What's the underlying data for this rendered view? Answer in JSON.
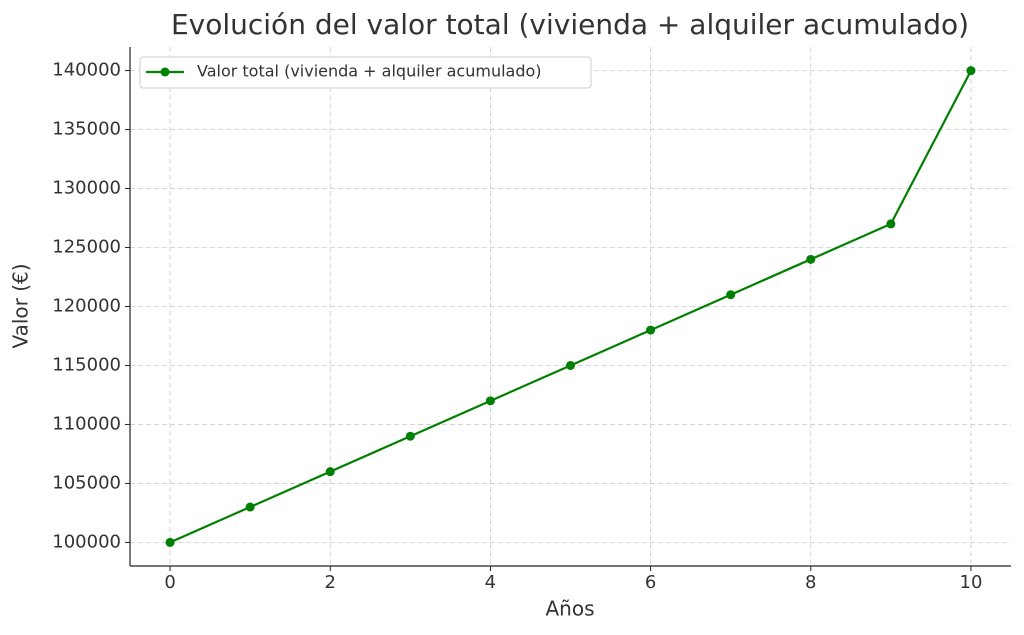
{
  "chart_data": {
    "type": "line",
    "title": "Evolución del valor total (vivienda + alquiler acumulado)",
    "x_label": "Años",
    "y_label": "Valor (€)",
    "x": [
      0,
      1,
      2,
      3,
      4,
      5,
      6,
      7,
      8,
      9,
      10
    ],
    "series": [
      {
        "name": "Valor total (vivienda + alquiler acumulado)",
        "color": "#008000",
        "values": [
          100000,
          103000,
          106000,
          109000,
          112000,
          115000,
          118000,
          121000,
          124000,
          127000,
          140000
        ]
      }
    ],
    "xlim": [
      -0.5,
      10.5
    ],
    "ylim": [
      98000,
      142000
    ],
    "xticks": [
      0,
      2,
      4,
      6,
      8,
      10
    ],
    "yticks": [
      100000,
      105000,
      110000,
      115000,
      120000,
      125000,
      130000,
      135000,
      140000
    ],
    "grid": true,
    "legend": "upper left"
  }
}
